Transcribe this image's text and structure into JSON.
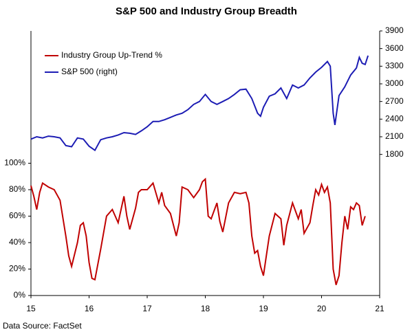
{
  "chart_data": {
    "type": "line",
    "title": "S&P 500 and Industry Group Breadth",
    "source": "Data Source: FactSet",
    "legend": "upper left",
    "xlim": [
      15,
      21
    ],
    "xticks": [
      15,
      16,
      17,
      18,
      19,
      20,
      21
    ],
    "ylim": [
      0,
      200
    ],
    "yticks": [
      {
        "value": 0,
        "label": "0%"
      },
      {
        "value": 20,
        "label": "20%"
      },
      {
        "value": 40,
        "label": "40%"
      },
      {
        "value": 60,
        "label": "60%"
      },
      {
        "value": 80,
        "label": "80%"
      },
      {
        "value": 100,
        "label": "100%"
      }
    ],
    "y2lim": [
      -600,
      3900
    ],
    "y2ticks": [
      1800,
      2100,
      2400,
      2700,
      3000,
      3300,
      3600,
      3900
    ],
    "series": [
      {
        "name": "Industry Group Up-Trend %",
        "color": "#c00000",
        "axis": "y",
        "x": [
          15.0,
          15.05,
          15.1,
          15.15,
          15.2,
          15.3,
          15.4,
          15.5,
          15.6,
          15.65,
          15.7,
          15.8,
          15.85,
          15.9,
          15.95,
          16.0,
          16.05,
          16.1,
          16.2,
          16.3,
          16.4,
          16.5,
          16.6,
          16.65,
          16.7,
          16.8,
          16.85,
          16.9,
          17.0,
          17.1,
          17.2,
          17.25,
          17.3,
          17.4,
          17.5,
          17.55,
          17.6,
          17.7,
          17.8,
          17.9,
          17.95,
          18.0,
          18.05,
          18.1,
          18.2,
          18.25,
          18.3,
          18.4,
          18.5,
          18.6,
          18.7,
          18.75,
          18.8,
          18.85,
          18.9,
          18.95,
          19.0,
          19.05,
          19.1,
          19.2,
          19.25,
          19.3,
          19.35,
          19.4,
          19.5,
          19.6,
          19.65,
          19.7,
          19.8,
          19.85,
          19.9,
          19.95,
          20.0,
          20.05,
          20.1,
          20.15,
          20.2,
          20.25,
          20.3,
          20.35,
          20.4,
          20.45,
          20.5,
          20.55,
          20.6,
          20.65,
          20.7,
          20.75
        ],
        "values": [
          83,
          75,
          65,
          78,
          85,
          82,
          80,
          72,
          45,
          30,
          22,
          40,
          53,
          55,
          45,
          25,
          13,
          12,
          35,
          60,
          65,
          55,
          75,
          60,
          50,
          66,
          78,
          80,
          80,
          85,
          70,
          78,
          68,
          62,
          45,
          55,
          82,
          80,
          74,
          80,
          86,
          88,
          60,
          58,
          70,
          56,
          48,
          70,
          78,
          77,
          78,
          70,
          45,
          32,
          34,
          22,
          15,
          30,
          45,
          62,
          60,
          58,
          38,
          53,
          70,
          58,
          65,
          47,
          55,
          68,
          80,
          76,
          84,
          78,
          82,
          70,
          20,
          8,
          15,
          40,
          60,
          50,
          67,
          65,
          70,
          68,
          53,
          60
        ]
      },
      {
        "name": "S&P 500 (right)",
        "color": "#1c1cb4",
        "axis": "y2",
        "x": [
          15.0,
          15.1,
          15.2,
          15.3,
          15.4,
          15.5,
          15.6,
          15.7,
          15.8,
          15.9,
          16.0,
          16.1,
          16.2,
          16.3,
          16.4,
          16.5,
          16.6,
          16.7,
          16.8,
          16.9,
          17.0,
          17.1,
          17.2,
          17.3,
          17.4,
          17.5,
          17.6,
          17.7,
          17.8,
          17.9,
          18.0,
          18.1,
          18.2,
          18.3,
          18.4,
          18.5,
          18.6,
          18.7,
          18.8,
          18.9,
          18.95,
          19.0,
          19.1,
          19.2,
          19.3,
          19.4,
          19.5,
          19.6,
          19.7,
          19.8,
          19.9,
          20.0,
          20.1,
          20.15,
          20.2,
          20.23,
          20.3,
          20.4,
          20.5,
          20.6,
          20.65,
          20.7,
          20.75,
          20.8
        ],
        "values": [
          2060,
          2100,
          2080,
          2110,
          2100,
          2080,
          1950,
          1930,
          2080,
          2060,
          1940,
          1870,
          2050,
          2080,
          2100,
          2130,
          2170,
          2160,
          2140,
          2200,
          2270,
          2360,
          2360,
          2390,
          2430,
          2470,
          2500,
          2560,
          2650,
          2700,
          2820,
          2700,
          2650,
          2700,
          2750,
          2820,
          2900,
          2910,
          2750,
          2500,
          2450,
          2600,
          2790,
          2830,
          2930,
          2750,
          2980,
          2930,
          2980,
          3100,
          3200,
          3280,
          3380,
          3300,
          2500,
          2300,
          2800,
          2950,
          3150,
          3270,
          3450,
          3350,
          3330,
          3480
        ]
      }
    ]
  }
}
